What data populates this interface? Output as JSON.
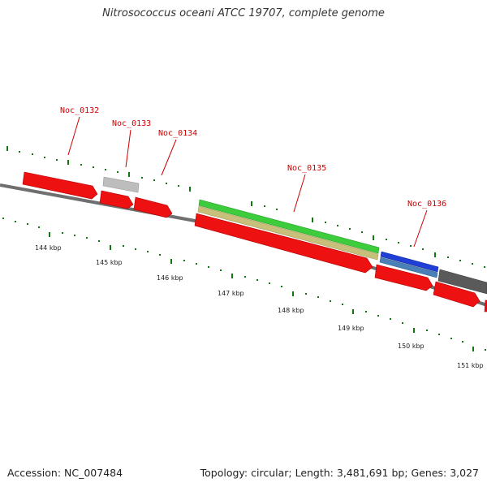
{
  "map": {
    "title": "Nitrosococcus oceani ATCC 19707, complete genome",
    "accession": "Accession: NC_007484",
    "summary": "Topology: circular; Length: 3,481,691 bp; Genes: 3,027"
  },
  "gene_labels": [
    "Noc_0132",
    "Noc_0133",
    "Noc_0134",
    "Noc_0135",
    "Noc_0136"
  ],
  "kbp_labels": [
    "144 kbp",
    "145 kbp",
    "146 kbp",
    "147 kbp",
    "148 kbp",
    "149 kbp",
    "150 kbp",
    "151 kbp"
  ],
  "feature_tracks": [
    {
      "track": "CDS",
      "color": "#ee1111"
    },
    {
      "track": "pseudo / misc",
      "color": "#bbbbbb"
    },
    {
      "track": "RNA / gene",
      "color": "#33cc33"
    },
    {
      "track": "gene (outer)",
      "color": "#c8c07a"
    },
    {
      "track": "feature",
      "color": "#1f3fd6"
    },
    {
      "track": "feature",
      "color": "#4a80b8"
    },
    {
      "track": "feature",
      "color": "#5a5a5a"
    }
  ],
  "colors": {
    "backbone": "#6f6f6f",
    "tick": "#117711",
    "label": "#cc0000"
  }
}
